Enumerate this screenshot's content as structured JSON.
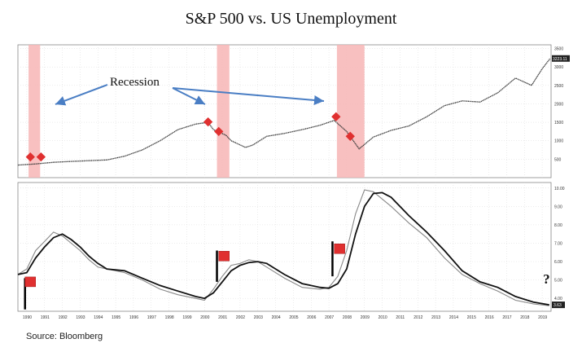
{
  "title": "S&P 500 vs. US Unemployment",
  "source": "Source: Bloomberg",
  "annotation": "Recession",
  "question_mark": "?",
  "colors": {
    "recession_band": "#f7b5b5",
    "flag": "#e03030",
    "line": "#111111",
    "line_thin": "#888888",
    "grid": "#d9d9d9"
  },
  "chart_data": [
    {
      "type": "line",
      "title": "",
      "x_label": "",
      "y_label": "",
      "y_ticks": [
        500,
        1000,
        1500,
        2000,
        2500,
        3000,
        3500
      ],
      "ylim": [
        0,
        3600
      ],
      "xlim": [
        1990,
        2020
      ],
      "current_value_label": "3223.11",
      "recessions": [
        [
          1990.6,
          1991.25
        ],
        [
          2001.2,
          2001.9
        ],
        [
          2007.95,
          2009.5
        ]
      ],
      "flags": [
        {
          "x": 1990.7,
          "y": 560
        },
        {
          "x": 1991.3,
          "y": 560
        },
        {
          "x": 2000.7,
          "y": 1510
        },
        {
          "x": 2001.3,
          "y": 1250
        },
        {
          "x": 2007.9,
          "y": 1650
        },
        {
          "x": 2008.7,
          "y": 1120
        }
      ],
      "series": [
        {
          "name": "",
          "x": [
            1990,
            1991,
            1992,
            1993,
            1994,
            1995,
            1996,
            1997,
            1998,
            1999,
            2000,
            2000.7,
            2001,
            2001.7,
            2002,
            2002.8,
            2003.2,
            2004,
            2005,
            2006,
            2007,
            2007.8,
            2008.5,
            2009.2,
            2010,
            2011,
            2012,
            2013,
            2014,
            2015,
            2016,
            2017,
            2018,
            2018.9,
            2019.5,
            2019.95
          ],
          "y": [
            340,
            370,
            415,
            440,
            460,
            480,
            580,
            750,
            1000,
            1300,
            1450,
            1500,
            1300,
            1150,
            1000,
            820,
            880,
            1120,
            1200,
            1300,
            1420,
            1550,
            1250,
            780,
            1100,
            1280,
            1400,
            1650,
            1950,
            2080,
            2050,
            2300,
            2700,
            2500,
            2950,
            3230
          ]
        }
      ]
    },
    {
      "type": "line",
      "title": "",
      "x_label": "",
      "y_label": "",
      "y_ticks": [
        "4.00",
        "5.00",
        "6.00",
        "7.00",
        "8.00",
        "9.00",
        "10.00"
      ],
      "ylim": [
        3.3,
        10.3
      ],
      "xlim": [
        1990,
        2020
      ],
      "current_value_label": "3.63",
      "x_tick_labels": [
        "1990",
        "1991",
        "1992",
        "1993",
        "1994",
        "1995",
        "1996",
        "1997",
        "1998",
        "1999",
        "2000",
        "2001",
        "2002",
        "2003",
        "2004",
        "2005",
        "2006",
        "2007",
        "2008",
        "2009",
        "2010",
        "2011",
        "2012",
        "2013",
        "2014",
        "2015",
        "2016",
        "2017",
        "2018",
        "2019"
      ],
      "flags": [
        {
          "x": 1990.4,
          "y": 4.9
        },
        {
          "x": 2001.3,
          "y": 6.3
        },
        {
          "x": 2007.8,
          "y": 6.7
        }
      ],
      "flag_poles": [
        {
          "x": 1990.4,
          "y0": 3.4,
          "y1": 5.1
        },
        {
          "x": 2001.2,
          "y0": 4.9,
          "y1": 6.6
        },
        {
          "x": 2007.7,
          "y0": 5.2,
          "y1": 7.1
        }
      ],
      "series": [
        {
          "name": "",
          "x": [
            1990,
            1990.5,
            1991,
            1991.5,
            1992,
            1992.5,
            1993,
            1993.5,
            1994,
            1994.5,
            1995,
            1996,
            1997,
            1998,
            1999,
            2000,
            2000.5,
            2001,
            2001.5,
            2002,
            2002.5,
            2003,
            2003.5,
            2004,
            2005,
            2006,
            2007,
            2007.5,
            2008,
            2008.5,
            2009,
            2009.5,
            2010,
            2010.5,
            2011,
            2012,
            2013,
            2014,
            2015,
            2016,
            2017,
            2018,
            2019,
            2019.9
          ],
          "y": [
            5.3,
            5.4,
            6.2,
            6.8,
            7.3,
            7.5,
            7.2,
            6.8,
            6.3,
            5.9,
            5.6,
            5.5,
            5.1,
            4.7,
            4.4,
            4.1,
            4.0,
            4.3,
            4.9,
            5.5,
            5.8,
            5.95,
            6.0,
            5.9,
            5.3,
            4.8,
            4.6,
            4.55,
            4.8,
            5.6,
            7.5,
            9.0,
            9.7,
            9.75,
            9.5,
            8.5,
            7.6,
            6.6,
            5.5,
            4.9,
            4.6,
            4.1,
            3.8,
            3.65
          ]
        },
        {
          "name": "",
          "x": [
            1990,
            1990.5,
            1991,
            1991.5,
            1992,
            1992.5,
            1993,
            1993.5,
            1994,
            1994.5,
            1995,
            1996,
            1997,
            1998,
            1999,
            2000,
            2000.5,
            2001,
            2001.5,
            2002,
            2002.5,
            2003,
            2003.5,
            2004,
            2005,
            2006,
            2007,
            2007.5,
            2008,
            2008.5,
            2009,
            2009.5,
            2010,
            2010.5,
            2011,
            2012,
            2013,
            2014,
            2015,
            2016,
            2017,
            2018,
            2019,
            2019.9
          ],
          "y": [
            5.3,
            5.6,
            6.6,
            7.1,
            7.6,
            7.4,
            7.0,
            6.6,
            6.1,
            5.7,
            5.6,
            5.4,
            5.0,
            4.5,
            4.2,
            4.0,
            3.9,
            4.5,
            5.2,
            5.8,
            5.9,
            6.1,
            6.0,
            5.7,
            5.1,
            4.6,
            4.5,
            4.6,
            5.2,
            6.6,
            8.6,
            9.9,
            9.8,
            9.4,
            9.0,
            8.1,
            7.3,
            6.2,
            5.3,
            4.8,
            4.4,
            3.9,
            3.7,
            3.6
          ]
        }
      ]
    }
  ]
}
